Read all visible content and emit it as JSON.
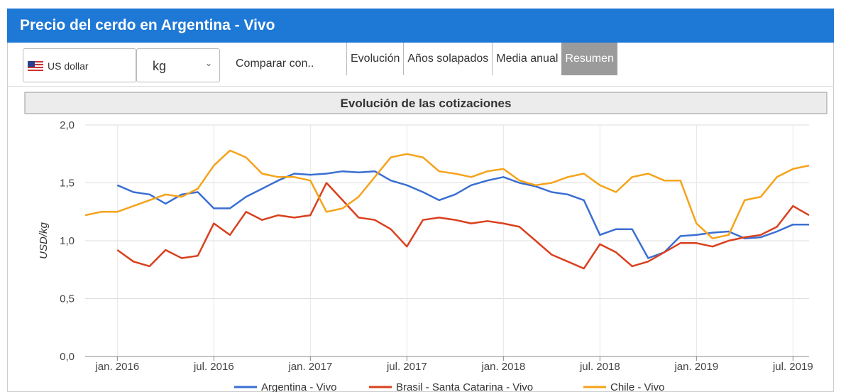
{
  "header": {
    "title": "Precio del cerdo en Argentina - Vivo"
  },
  "toolbar": {
    "currency": "US dollar",
    "unit": "kg",
    "compare": "Comparar con..",
    "tabs": [
      "Evolución",
      "Años solapados",
      "Media anual",
      "Resumen"
    ]
  },
  "chart_data": {
    "type": "line",
    "title": "Evolución de las cotizaciones",
    "y_label": "USD/kg",
    "x": [
      "2015-11",
      "2015-12",
      "2016-01",
      "2016-02",
      "2016-03",
      "2016-04",
      "2016-05",
      "2016-06",
      "2016-07",
      "2016-08",
      "2016-09",
      "2016-10",
      "2016-11",
      "2016-12",
      "2017-01",
      "2017-02",
      "2017-03",
      "2017-04",
      "2017-05",
      "2017-06",
      "2017-07",
      "2017-08",
      "2017-09",
      "2017-10",
      "2017-11",
      "2017-12",
      "2018-01",
      "2018-02",
      "2018-03",
      "2018-04",
      "2018-05",
      "2018-06",
      "2018-07",
      "2018-08",
      "2018-09",
      "2018-10",
      "2018-11",
      "2018-12",
      "2019-01",
      "2019-02",
      "2019-03",
      "2019-04",
      "2019-05",
      "2019-06",
      "2019-07",
      "2019-08"
    ],
    "xlim": [
      "2015-11",
      "2019-08"
    ],
    "xticks": [
      {
        "value": "2016-01",
        "label": "jan. 2016"
      },
      {
        "value": "2016-07",
        "label": "jul. 2016"
      },
      {
        "value": "2017-01",
        "label": "jan. 2017"
      },
      {
        "value": "2017-07",
        "label": "jul. 2017"
      },
      {
        "value": "2018-01",
        "label": "jan. 2018"
      },
      {
        "value": "2018-07",
        "label": "jul. 2018"
      },
      {
        "value": "2019-01",
        "label": "jan. 2019"
      },
      {
        "value": "2019-07",
        "label": "jul. 2019"
      }
    ],
    "ylim": [
      0,
      2
    ],
    "yticks": [
      {
        "value": 0,
        "label": "0,0"
      },
      {
        "value": 0.5,
        "label": "0,5"
      },
      {
        "value": 1,
        "label": "1,0"
      },
      {
        "value": 1.5,
        "label": "1,5"
      },
      {
        "value": 2,
        "label": "2,0"
      }
    ],
    "grid": true,
    "series": [
      {
        "name": "Argentina - Vivo",
        "color": "#3a6fd1",
        "values": [
          null,
          null,
          1.48,
          1.42,
          1.4,
          1.32,
          1.4,
          1.42,
          1.28,
          1.28,
          1.38,
          1.45,
          1.52,
          1.58,
          1.57,
          1.58,
          1.6,
          1.59,
          1.6,
          1.52,
          1.48,
          1.42,
          1.35,
          1.4,
          1.48,
          1.52,
          1.55,
          1.5,
          1.47,
          1.42,
          1.4,
          1.35,
          1.05,
          1.1,
          1.1,
          0.85,
          0.9,
          1.04,
          1.05,
          1.07,
          1.08,
          1.02,
          1.03,
          1.08,
          1.14,
          1.14
        ]
      },
      {
        "name": "Brasil - Santa Catarina - Vivo",
        "color": "#d9401e",
        "values": [
          null,
          null,
          0.92,
          0.82,
          0.78,
          0.92,
          0.85,
          0.87,
          1.15,
          1.05,
          1.25,
          1.18,
          1.22,
          1.2,
          1.22,
          1.5,
          1.35,
          1.2,
          1.18,
          1.1,
          0.95,
          1.18,
          1.2,
          1.18,
          1.15,
          1.17,
          1.15,
          1.12,
          1.0,
          0.88,
          0.82,
          0.76,
          0.97,
          0.9,
          0.78,
          0.82,
          0.9,
          0.98,
          0.98,
          0.95,
          1.0,
          1.03,
          1.05,
          1.12,
          1.3,
          1.22
        ]
      },
      {
        "name": "Chile - Vivo",
        "color": "#f5a31a",
        "values": [
          1.22,
          1.25,
          1.25,
          1.3,
          1.35,
          1.4,
          1.38,
          1.45,
          1.65,
          1.78,
          1.72,
          1.58,
          1.55,
          1.55,
          1.52,
          1.25,
          1.28,
          1.38,
          1.55,
          1.72,
          1.75,
          1.72,
          1.6,
          1.58,
          1.55,
          1.6,
          1.62,
          1.52,
          1.48,
          1.5,
          1.55,
          1.58,
          1.48,
          1.42,
          1.55,
          1.58,
          1.52,
          1.52,
          1.15,
          1.02,
          1.05,
          1.35,
          1.38,
          1.55,
          1.62,
          1.65
        ]
      }
    ]
  }
}
